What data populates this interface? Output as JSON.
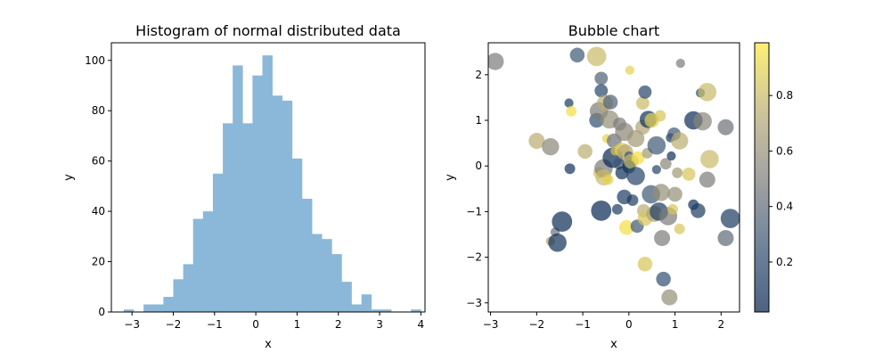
{
  "chart_data": [
    {
      "type": "bar",
      "subtype": "histogram",
      "title": "Histogram of normal distributed data",
      "xlabel": "x",
      "ylabel": "y",
      "xlim": [
        -3.5,
        4.1
      ],
      "ylim": [
        0,
        107
      ],
      "xticks": [
        -3,
        -2,
        -1,
        0,
        1,
        2,
        3,
        4
      ],
      "yticks": [
        0,
        20,
        40,
        60,
        80,
        100
      ],
      "bin_edges": [
        -3.2,
        -2.96,
        -2.72,
        -2.48,
        -2.24,
        -2.0,
        -1.76,
        -1.52,
        -1.28,
        -1.04,
        -0.8,
        -0.56,
        -0.32,
        -0.08,
        0.16,
        0.4,
        0.64,
        0.88,
        1.12,
        1.36,
        1.6,
        1.84,
        2.08,
        2.32,
        2.56,
        2.8,
        3.04,
        3.28,
        3.52,
        3.76,
        4.0
      ],
      "values": [
        1,
        0,
        3,
        3,
        6,
        13,
        19,
        37,
        40,
        55,
        75,
        98,
        75,
        94,
        102,
        86,
        84,
        61,
        45,
        31,
        29,
        23,
        12,
        3,
        7,
        1,
        1,
        0,
        0,
        1
      ],
      "color": "#8bb8d8",
      "grid": false
    },
    {
      "type": "scatter",
      "subtype": "bubble",
      "title": "Bubble chart",
      "xlabel": "x",
      "ylabel": "y",
      "xlim": [
        -3.05,
        2.4
      ],
      "ylim": [
        -3.2,
        2.7
      ],
      "xticks": [
        -3,
        -2,
        -1,
        0,
        1,
        2
      ],
      "yticks": [
        -3,
        -2,
        -1,
        0,
        1,
        2
      ],
      "colormap": "cividis",
      "alpha": 0.7,
      "colorbar": {
        "range": [
          0.02,
          0.99
        ],
        "ticks": [
          0.2,
          0.4,
          0.6,
          0.8
        ]
      },
      "points": [
        {
          "x": -2.9,
          "y": 2.29,
          "s": 0.3,
          "c": 0.5
        },
        {
          "x": -2.0,
          "y": 0.55,
          "s": 0.25,
          "c": 0.75
        },
        {
          "x": -1.7,
          "y": 0.42,
          "s": 0.3,
          "c": 0.55
        },
        {
          "x": -1.7,
          "y": -1.65,
          "s": 0.05,
          "c": 0.7
        },
        {
          "x": -1.6,
          "y": -1.45,
          "s": 0.05,
          "c": 0.45
        },
        {
          "x": -1.55,
          "y": -1.68,
          "s": 0.35,
          "c": 0.1
        },
        {
          "x": -1.45,
          "y": -1.22,
          "s": 0.45,
          "c": 0.08
        },
        {
          "x": -1.3,
          "y": 1.38,
          "s": 0.05,
          "c": 0.15
        },
        {
          "x": -1.28,
          "y": -0.06,
          "s": 0.08,
          "c": 0.1
        },
        {
          "x": -1.25,
          "y": 1.2,
          "s": 0.08,
          "c": 0.95
        },
        {
          "x": -1.12,
          "y": 2.43,
          "s": 0.2,
          "c": 0.3
        },
        {
          "x": -0.95,
          "y": 0.32,
          "s": 0.2,
          "c": 0.75
        },
        {
          "x": -0.7,
          "y": 1.0,
          "s": 0.2,
          "c": 0.25
        },
        {
          "x": -0.7,
          "y": 2.4,
          "s": 0.4,
          "c": 0.8
        },
        {
          "x": -0.65,
          "y": 1.2,
          "s": 0.35,
          "c": 0.5
        },
        {
          "x": -0.65,
          "y": -0.15,
          "s": 0.1,
          "c": 0.85
        },
        {
          "x": -0.6,
          "y": 1.92,
          "s": 0.15,
          "c": 0.35
        },
        {
          "x": -0.6,
          "y": 1.65,
          "s": 0.15,
          "c": 0.2
        },
        {
          "x": -0.6,
          "y": -0.98,
          "s": 0.45,
          "c": 0.05
        },
        {
          "x": -0.55,
          "y": -0.05,
          "s": 0.35,
          "c": 0.5
        },
        {
          "x": -0.55,
          "y": -0.25,
          "s": 0.25,
          "c": 0.8
        },
        {
          "x": -0.52,
          "y": 1.38,
          "s": 0.25,
          "c": 0.75
        },
        {
          "x": -0.48,
          "y": 0.6,
          "s": 0.05,
          "c": 0.9
        },
        {
          "x": -0.45,
          "y": -0.3,
          "s": 0.08,
          "c": 0.9
        },
        {
          "x": -0.42,
          "y": 1.02,
          "s": 0.35,
          "c": 0.6
        },
        {
          "x": -0.4,
          "y": 1.4,
          "s": 0.2,
          "c": 0.35
        },
        {
          "x": -0.35,
          "y": 0.18,
          "s": 0.45,
          "c": 0.05
        },
        {
          "x": -0.32,
          "y": 0.55,
          "s": 0.2,
          "c": 0.45
        },
        {
          "x": -0.3,
          "y": 0.33,
          "s": 0.05,
          "c": 0.85
        },
        {
          "x": -0.25,
          "y": -0.95,
          "s": 0.08,
          "c": 0.15
        },
        {
          "x": -0.22,
          "y": 0.05,
          "s": 0.1,
          "c": 0.3
        },
        {
          "x": -0.2,
          "y": 0.92,
          "s": 0.15,
          "c": 0.5
        },
        {
          "x": -0.15,
          "y": 0.35,
          "s": 0.2,
          "c": 0.9
        },
        {
          "x": -0.15,
          "y": -0.15,
          "s": 0.15,
          "c": 0.1
        },
        {
          "x": -0.1,
          "y": 0.75,
          "s": 0.35,
          "c": 0.55
        },
        {
          "x": -0.1,
          "y": -0.68,
          "s": 0.2,
          "c": 0.15
        },
        {
          "x": -0.08,
          "y": 0.3,
          "s": 0.25,
          "c": 0.7
        },
        {
          "x": -0.05,
          "y": -1.35,
          "s": 0.2,
          "c": 0.95
        },
        {
          "x": 0.0,
          "y": 0.22,
          "s": 0.05,
          "c": 0.3
        },
        {
          "x": 0.0,
          "y": 0.05,
          "s": 0.15,
          "c": 0.35
        },
        {
          "x": 0.0,
          "y": -0.02,
          "s": 0.15,
          "c": 0.1
        },
        {
          "x": 0.02,
          "y": 2.1,
          "s": 0.05,
          "c": 0.9
        },
        {
          "x": 0.05,
          "y": 0.1,
          "s": 0.2,
          "c": 0.8
        },
        {
          "x": 0.08,
          "y": -0.75,
          "s": 0.1,
          "c": 0.15
        },
        {
          "x": 0.15,
          "y": 0.6,
          "s": 0.3,
          "c": 0.65
        },
        {
          "x": 0.15,
          "y": -0.22,
          "s": 0.35,
          "c": 0.2
        },
        {
          "x": 0.18,
          "y": -1.32,
          "s": 0.15,
          "c": 0.3
        },
        {
          "x": 0.2,
          "y": 0.18,
          "s": 0.15,
          "c": 0.95
        },
        {
          "x": 0.3,
          "y": 1.38,
          "s": 0.15,
          "c": 0.8
        },
        {
          "x": 0.3,
          "y": 0.85,
          "s": 0.2,
          "c": 0.7
        },
        {
          "x": 0.32,
          "y": -0.98,
          "s": 0.15,
          "c": 0.75
        },
        {
          "x": 0.35,
          "y": -1.15,
          "s": 0.2,
          "c": 0.85
        },
        {
          "x": 0.35,
          "y": -2.15,
          "s": 0.2,
          "c": 0.85
        },
        {
          "x": 0.35,
          "y": 1.62,
          "s": 0.15,
          "c": 0.2
        },
        {
          "x": 0.4,
          "y": 0.28,
          "s": 0.08,
          "c": 0.65
        },
        {
          "x": 0.42,
          "y": 1.02,
          "s": 0.3,
          "c": 0.1
        },
        {
          "x": 0.48,
          "y": -0.62,
          "s": 0.35,
          "c": 0.3
        },
        {
          "x": 0.5,
          "y": 1.0,
          "s": 0.2,
          "c": 0.9
        },
        {
          "x": 0.55,
          "y": -1.05,
          "s": 0.25,
          "c": 0.7
        },
        {
          "x": 0.6,
          "y": 0.45,
          "s": 0.35,
          "c": 0.3
        },
        {
          "x": 0.6,
          "y": -0.08,
          "s": 0.05,
          "c": 0.2
        },
        {
          "x": 0.65,
          "y": -1.0,
          "s": 0.35,
          "c": 0.15
        },
        {
          "x": 0.68,
          "y": 1.1,
          "s": 0.1,
          "c": 0.85
        },
        {
          "x": 0.7,
          "y": -0.58,
          "s": 0.3,
          "c": 0.6
        },
        {
          "x": 0.72,
          "y": -1.58,
          "s": 0.25,
          "c": 0.5
        },
        {
          "x": 0.75,
          "y": -2.48,
          "s": 0.2,
          "c": 0.25
        },
        {
          "x": 0.8,
          "y": 0.05,
          "s": 0.1,
          "c": 0.55
        },
        {
          "x": 0.85,
          "y": -1.1,
          "s": 0.35,
          "c": 0.5
        },
        {
          "x": 0.88,
          "y": -2.88,
          "s": 0.25,
          "c": 0.6
        },
        {
          "x": 0.9,
          "y": 0.62,
          "s": 0.05,
          "c": 0.15
        },
        {
          "x": 0.92,
          "y": 0.22,
          "s": 0.05,
          "c": 0.1
        },
        {
          "x": 0.95,
          "y": -0.95,
          "s": 0.08,
          "c": 0.85
        },
        {
          "x": 0.98,
          "y": 0.7,
          "s": 0.15,
          "c": 0.3
        },
        {
          "x": 1.0,
          "y": -0.62,
          "s": 0.2,
          "c": 0.6
        },
        {
          "x": 1.05,
          "y": -0.15,
          "s": 0.08,
          "c": 0.65
        },
        {
          "x": 1.1,
          "y": -1.38,
          "s": 0.08,
          "c": 0.85
        },
        {
          "x": 1.1,
          "y": 0.55,
          "s": 0.3,
          "c": 0.75
        },
        {
          "x": 1.12,
          "y": 2.25,
          "s": 0.05,
          "c": 0.5
        },
        {
          "x": 1.3,
          "y": -0.18,
          "s": 0.15,
          "c": 0.85
        },
        {
          "x": 1.4,
          "y": -0.85,
          "s": 0.08,
          "c": 0.1
        },
        {
          "x": 1.4,
          "y": 1.0,
          "s": 0.35,
          "c": 0.08
        },
        {
          "x": 1.5,
          "y": -0.98,
          "s": 0.2,
          "c": 0.15
        },
        {
          "x": 1.55,
          "y": 1.6,
          "s": 0.05,
          "c": 0.25
        },
        {
          "x": 1.6,
          "y": 0.98,
          "s": 0.35,
          "c": 0.55
        },
        {
          "x": 1.7,
          "y": 1.62,
          "s": 0.35,
          "c": 0.8
        },
        {
          "x": 1.7,
          "y": -0.3,
          "s": 0.25,
          "c": 0.5
        },
        {
          "x": 1.75,
          "y": 0.15,
          "s": 0.35,
          "c": 0.8
        },
        {
          "x": 2.1,
          "y": 0.85,
          "s": 0.25,
          "c": 0.45
        },
        {
          "x": 2.1,
          "y": -1.58,
          "s": 0.25,
          "c": 0.4
        },
        {
          "x": 2.2,
          "y": -1.15,
          "s": 0.4,
          "c": 0.15
        }
      ]
    }
  ]
}
